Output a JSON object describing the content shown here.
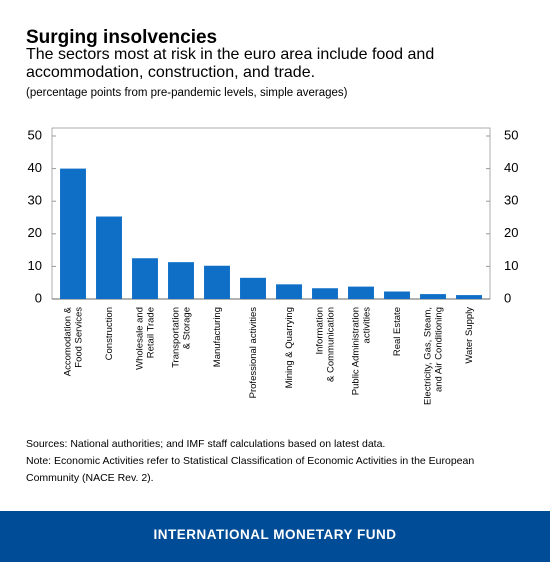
{
  "chart_data": {
    "type": "bar",
    "title": "Surging insolvencies",
    "subtitle": "The sectors most at risk in the euro area include food and accommodation, construction, and trade.",
    "unit_note": "(percentage points from pre-pandemic levels, simple averages)",
    "categories": [
      "Accomodation &\nFood Services",
      "Construction",
      "Wholesale and\nRetail Trade",
      "Transportation\n& Storage",
      "Manufacturing",
      "Professional activities",
      "Mining & Quarrying",
      "Information\n& Communication",
      "Public Administration\nactivities",
      "Real Estate",
      "Electricity, Gas, Steam,\nand Air Conditioning",
      "Water Supply"
    ],
    "values": [
      40,
      25.3,
      12.5,
      11.3,
      10.2,
      6.5,
      4.5,
      3.3,
      3.8,
      2.3,
      1.5,
      1.2
    ],
    "color": "#0f6fc6",
    "ylim": [
      0,
      50
    ],
    "yticks": [
      0,
      10,
      20,
      30,
      40,
      50
    ],
    "y2lim": [
      0,
      50
    ],
    "y2ticks": [
      0,
      10,
      20,
      30,
      40,
      50
    ],
    "sources": "Sources: National authorities; and IMF staff calculations based on latest data.",
    "note": "Note: Economic Activities refer to Statistical Classification of Economic Activities in the European Community (NACE Rev. 2)."
  },
  "footer": "INTERNATIONAL MONETARY FUND"
}
